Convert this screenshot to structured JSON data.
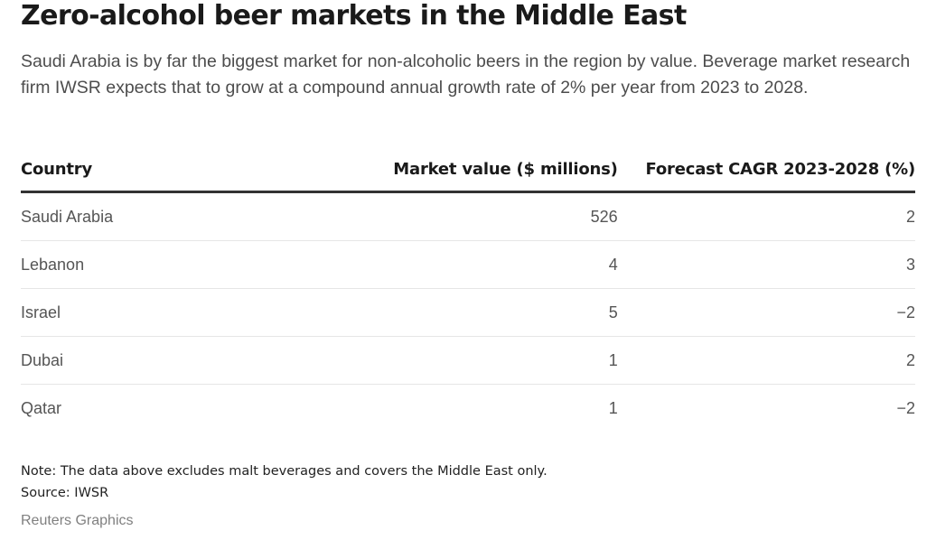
{
  "title": "Zero-alcohol beer markets in the Middle East",
  "subtitle": "Saudi Arabia is by far the biggest market for non-alcoholic beers in the region by value. Beverage market research firm IWSR expects that to grow at a compound annual growth rate of 2% per year from 2023 to 2028.",
  "chart_data": {
    "type": "table",
    "title": "Zero-alcohol beer markets in the Middle East",
    "columns": [
      "Country",
      "Market value ($ millions)",
      "Forecast CAGR 2023-2028 (%)"
    ],
    "rows": [
      {
        "country": "Saudi Arabia",
        "value": "526",
        "cagr": "2"
      },
      {
        "country": "Lebanon",
        "value": "4",
        "cagr": "3"
      },
      {
        "country": "Israel",
        "value": "5",
        "cagr": "−2"
      },
      {
        "country": "Dubai",
        "value": "1",
        "cagr": "2"
      },
      {
        "country": "Qatar",
        "value": "1",
        "cagr": "−2"
      }
    ]
  },
  "note": "Note: The data above excludes malt beverages and covers the Middle East only.",
  "source": "Source: IWSR",
  "credit": "Reuters Graphics"
}
